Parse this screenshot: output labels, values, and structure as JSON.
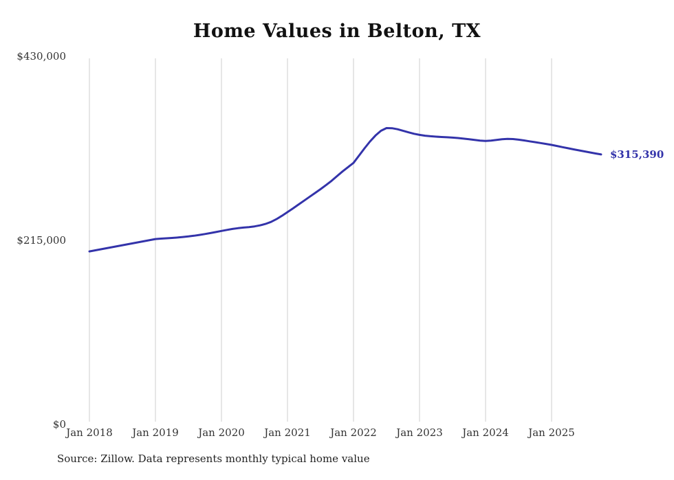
{
  "chart_data": {
    "type": "line",
    "title": "Home Values in Belton, TX",
    "source": "Source: Zillow. Data represents monthly typical home value",
    "final_value_label": "$315,390",
    "final_value": 315390,
    "line_color": "#3333aa",
    "grid_color": "#cccccc",
    "axis_text_color": "#333333",
    "start_month": "2018-01",
    "end_month": "2025-10",
    "ylim": [
      0,
      430000
    ],
    "y_tick_labels": [
      "$430,000",
      "$215,000",
      "$0"
    ],
    "y_tick_values": [
      430000,
      215000,
      0
    ],
    "x_tick_labels": [
      "Jan 2018",
      "Jan 2019",
      "Jan 2020",
      "Jan 2021",
      "Jan 2022",
      "Jan 2023",
      "Jan 2024",
      "Jan 2025"
    ],
    "x_tick_month_indices": [
      0,
      12,
      24,
      36,
      48,
      60,
      72,
      84
    ],
    "grid": true,
    "legend": false,
    "values": [
      202100,
      203300,
      204500,
      205700,
      206900,
      208100,
      209300,
      210500,
      211700,
      212900,
      214100,
      215300,
      216500,
      217000,
      217400,
      217800,
      218300,
      218900,
      219600,
      220400,
      221300,
      222400,
      223500,
      224700,
      226000,
      227200,
      228300,
      229200,
      229900,
      230500,
      231300,
      232500,
      234200,
      236500,
      239800,
      243700,
      248000,
      252300,
      256800,
      261300,
      265800,
      270300,
      274800,
      279500,
      284500,
      290000,
      295500,
      300500,
      305500,
      314000,
      322500,
      330500,
      337500,
      343000,
      346200,
      346000,
      344800,
      343000,
      341200,
      339500,
      338200,
      337300,
      336600,
      336100,
      335700,
      335400,
      335000,
      334500,
      333800,
      333100,
      332300,
      331600,
      331100,
      331600,
      332300,
      333100,
      333600,
      333300,
      332600,
      331700,
      330700,
      329700,
      328700,
      327600,
      326500,
      325200,
      323900,
      322600,
      321300,
      320100,
      318900,
      317700,
      316500,
      315390
    ]
  }
}
